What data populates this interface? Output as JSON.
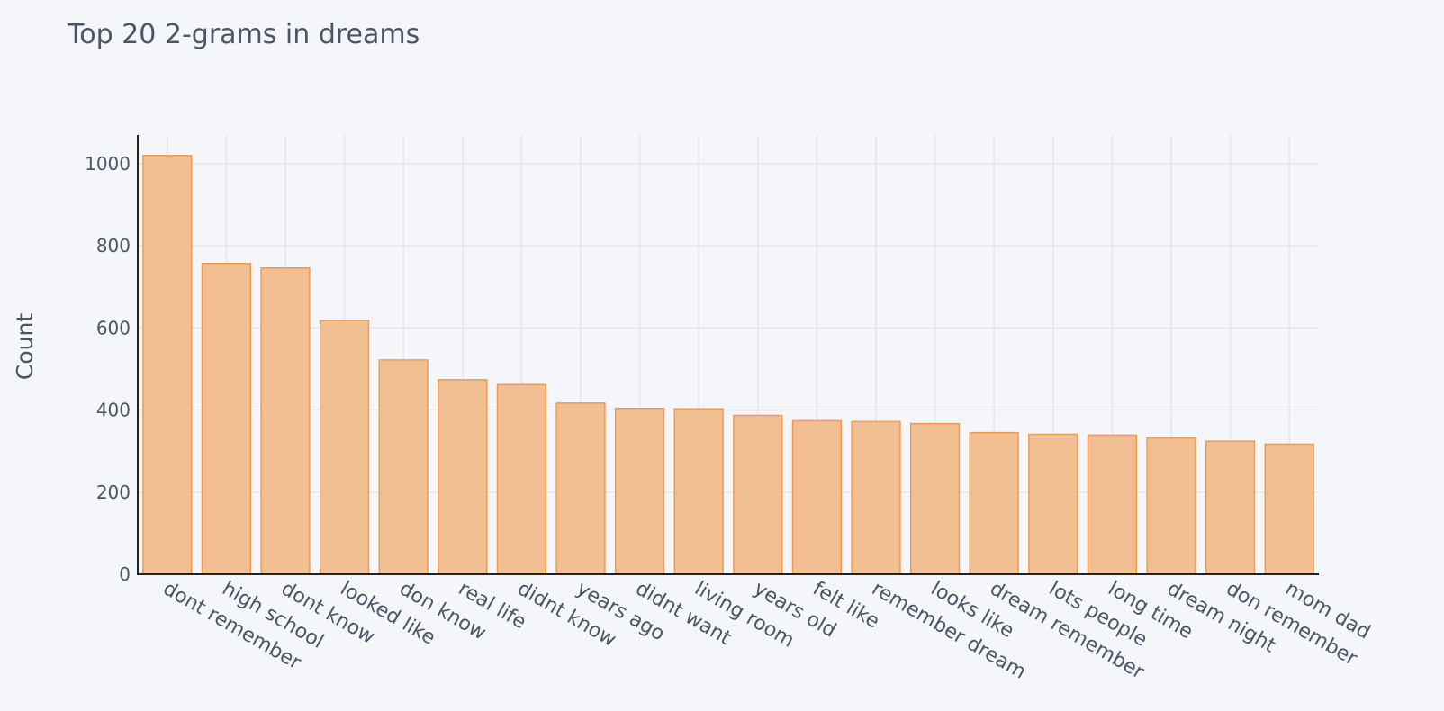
{
  "chart_data": {
    "type": "bar",
    "title": "Top 20 2-grams in dreams",
    "xlabel": "",
    "ylabel": "Count",
    "ylim": [
      0,
      1070
    ],
    "yticks": [
      0,
      200,
      400,
      600,
      800,
      1000
    ],
    "grid": true,
    "legend": "none",
    "categories": [
      "dont remember",
      "high school",
      "dont know",
      "looked like",
      "don know",
      "real life",
      "didnt know",
      "years ago",
      "didnt want",
      "living room",
      "years old",
      "felt like",
      "remember dream",
      "looks like",
      "dream remember",
      "lots people",
      "long time",
      "dream night",
      "don remember",
      "mom dad"
    ],
    "values": [
      1020,
      757,
      746,
      618,
      522,
      474,
      462,
      417,
      404,
      403,
      387,
      374,
      372,
      367,
      345,
      341,
      339,
      332,
      324,
      317
    ],
    "colors": {
      "bar_fill": "#f2bf93",
      "bar_stroke": "#f09a4e",
      "background": "#f5f6fa",
      "gridline": "#e3e5ec",
      "text": "#4d5565"
    }
  }
}
